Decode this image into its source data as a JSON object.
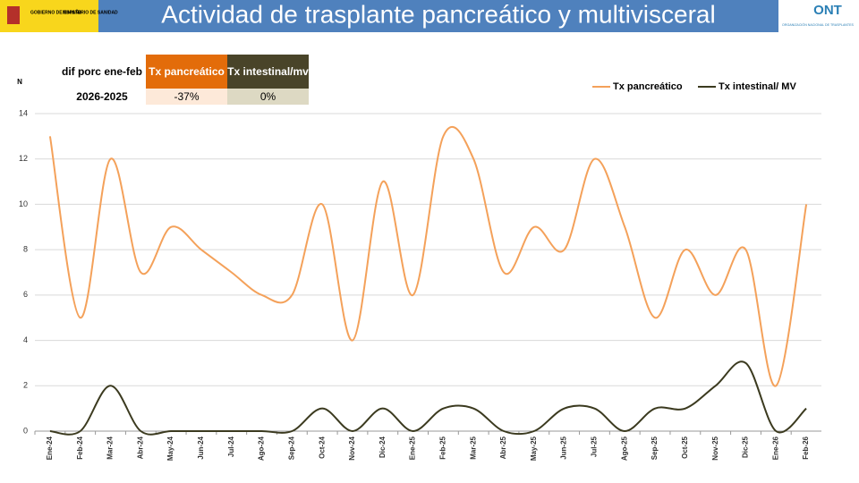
{
  "header": {
    "title": "Actividad de trasplante pancreático y multivisceral",
    "gov_logo": [
      "GOBIERNO DE ESPAÑA",
      "MINISTERIO DE SANIDAD"
    ],
    "ont_logo": [
      "ONT",
      "ORGANIZACIÓN NACIONAL DE TRASPLANTES"
    ]
  },
  "table": {
    "header": [
      "dif porc ene-feb",
      "Tx pancreático",
      "Tx intestinal/mv"
    ],
    "rows": [
      [
        "2026-2025",
        "-37%",
        "0%"
      ]
    ]
  },
  "chart_data": {
    "type": "line",
    "y_label": "N",
    "categories": [
      "Ene-24",
      "Feb-24",
      "Mar-24",
      "Abr-24",
      "May-24",
      "Jun-24",
      "Jul-24",
      "Ago-24",
      "Sep-24",
      "Oct-24",
      "Nov-24",
      "Dic-24",
      "Ene-25",
      "Feb-25",
      "Mar-25",
      "Abr-25",
      "May-25",
      "Jun-25",
      "Jul-25",
      "Ago-25",
      "Sep-25",
      "Oct-25",
      "Nov-25",
      "Dic-25",
      "Ene-26",
      "Feb-26"
    ],
    "series": [
      {
        "name": "Tx pancreático",
        "color": "#f4a15a",
        "values": [
          13,
          5,
          12,
          7,
          9,
          8,
          7,
          6,
          6,
          10,
          4,
          11,
          6,
          13,
          12,
          7,
          9,
          8,
          12,
          9,
          5,
          8,
          6,
          8,
          2,
          10
        ]
      },
      {
        "name": "Tx intestinal/ MV",
        "color": "#3b3a1f",
        "values": [
          0,
          0,
          2,
          0,
          0,
          0,
          0,
          0,
          0,
          1,
          0,
          1,
          0,
          1,
          1,
          0,
          0,
          1,
          1,
          0,
          1,
          1,
          2,
          3,
          0,
          1
        ]
      }
    ],
    "ylim": [
      0,
      14
    ],
    "yticks": [
      0,
      2,
      4,
      6,
      8,
      10,
      12,
      14
    ],
    "grid": true,
    "legend": "top-right"
  }
}
